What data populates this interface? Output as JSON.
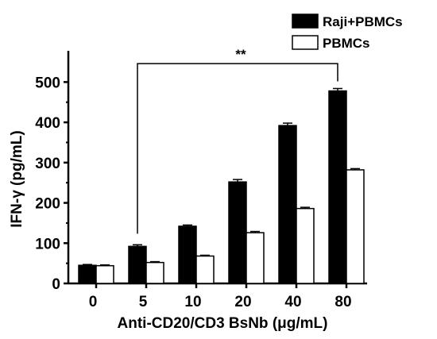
{
  "chart_data": {
    "type": "bar",
    "categories": [
      "0",
      "5",
      "10",
      "20",
      "40",
      "80"
    ],
    "series": [
      {
        "name": "Raji+PBMCs",
        "values": [
          45,
          92,
          142,
          252,
          392,
          478
        ],
        "errors": [
          2,
          4,
          3,
          6,
          6,
          6
        ],
        "color": "#000000"
      },
      {
        "name": "PBMCs",
        "values": [
          44,
          52,
          68,
          126,
          186,
          282
        ],
        "errors": [
          2,
          2,
          2,
          3,
          3,
          3
        ],
        "color": "#ffffff"
      }
    ],
    "xlabel": "Anti-CD20/CD3 BsNb (μg/mL)",
    "ylabel": "IFN-γ (pg/mL)",
    "ylim": [
      0,
      550
    ],
    "yticks": [
      0,
      100,
      200,
      300,
      400,
      500
    ],
    "legend_position": "top-right",
    "grid": false,
    "significance": {
      "label": "**",
      "from_category": "5",
      "to_category": "80",
      "level": 540
    }
  }
}
